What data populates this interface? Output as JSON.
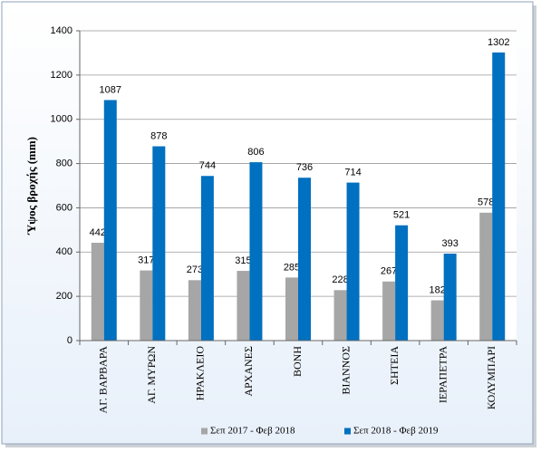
{
  "chart_data": {
    "type": "bar",
    "ylabel": "Ύψος βροχής (mm)",
    "categories": [
      "ΑΓ. ΒΑΡΒΑΡΑ",
      "ΑΓ. ΜΥΡΩΝ",
      "ΗΡΑΚΛΕΙΟ",
      "ΑΡΧΑΝΕΣ",
      "ΒΟΝΗ",
      "ΒΙΑΝΝΟΣ",
      "ΣΗΤΕΙΑ",
      "ΙΕΡΑΠΕΤΡΑ",
      "ΚΟΛΥΜΠΑΡΙ"
    ],
    "series": [
      {
        "name": "Σεπ 2017 - Φεβ 2018",
        "color": "#a6a6a6",
        "values": [
          442,
          317,
          273,
          315,
          285,
          228,
          267,
          182,
          578
        ]
      },
      {
        "name": "Σεπ 2018 - Φεβ 2019",
        "color": "#0070c0",
        "values": [
          1087,
          878,
          744,
          806,
          736,
          714,
          521,
          393,
          1302
        ]
      }
    ],
    "ylim": [
      0,
      1400
    ],
    "yticks": [
      0,
      200,
      400,
      600,
      800,
      1000,
      1200,
      1400
    ],
    "grid": true,
    "legend": "bottom"
  }
}
